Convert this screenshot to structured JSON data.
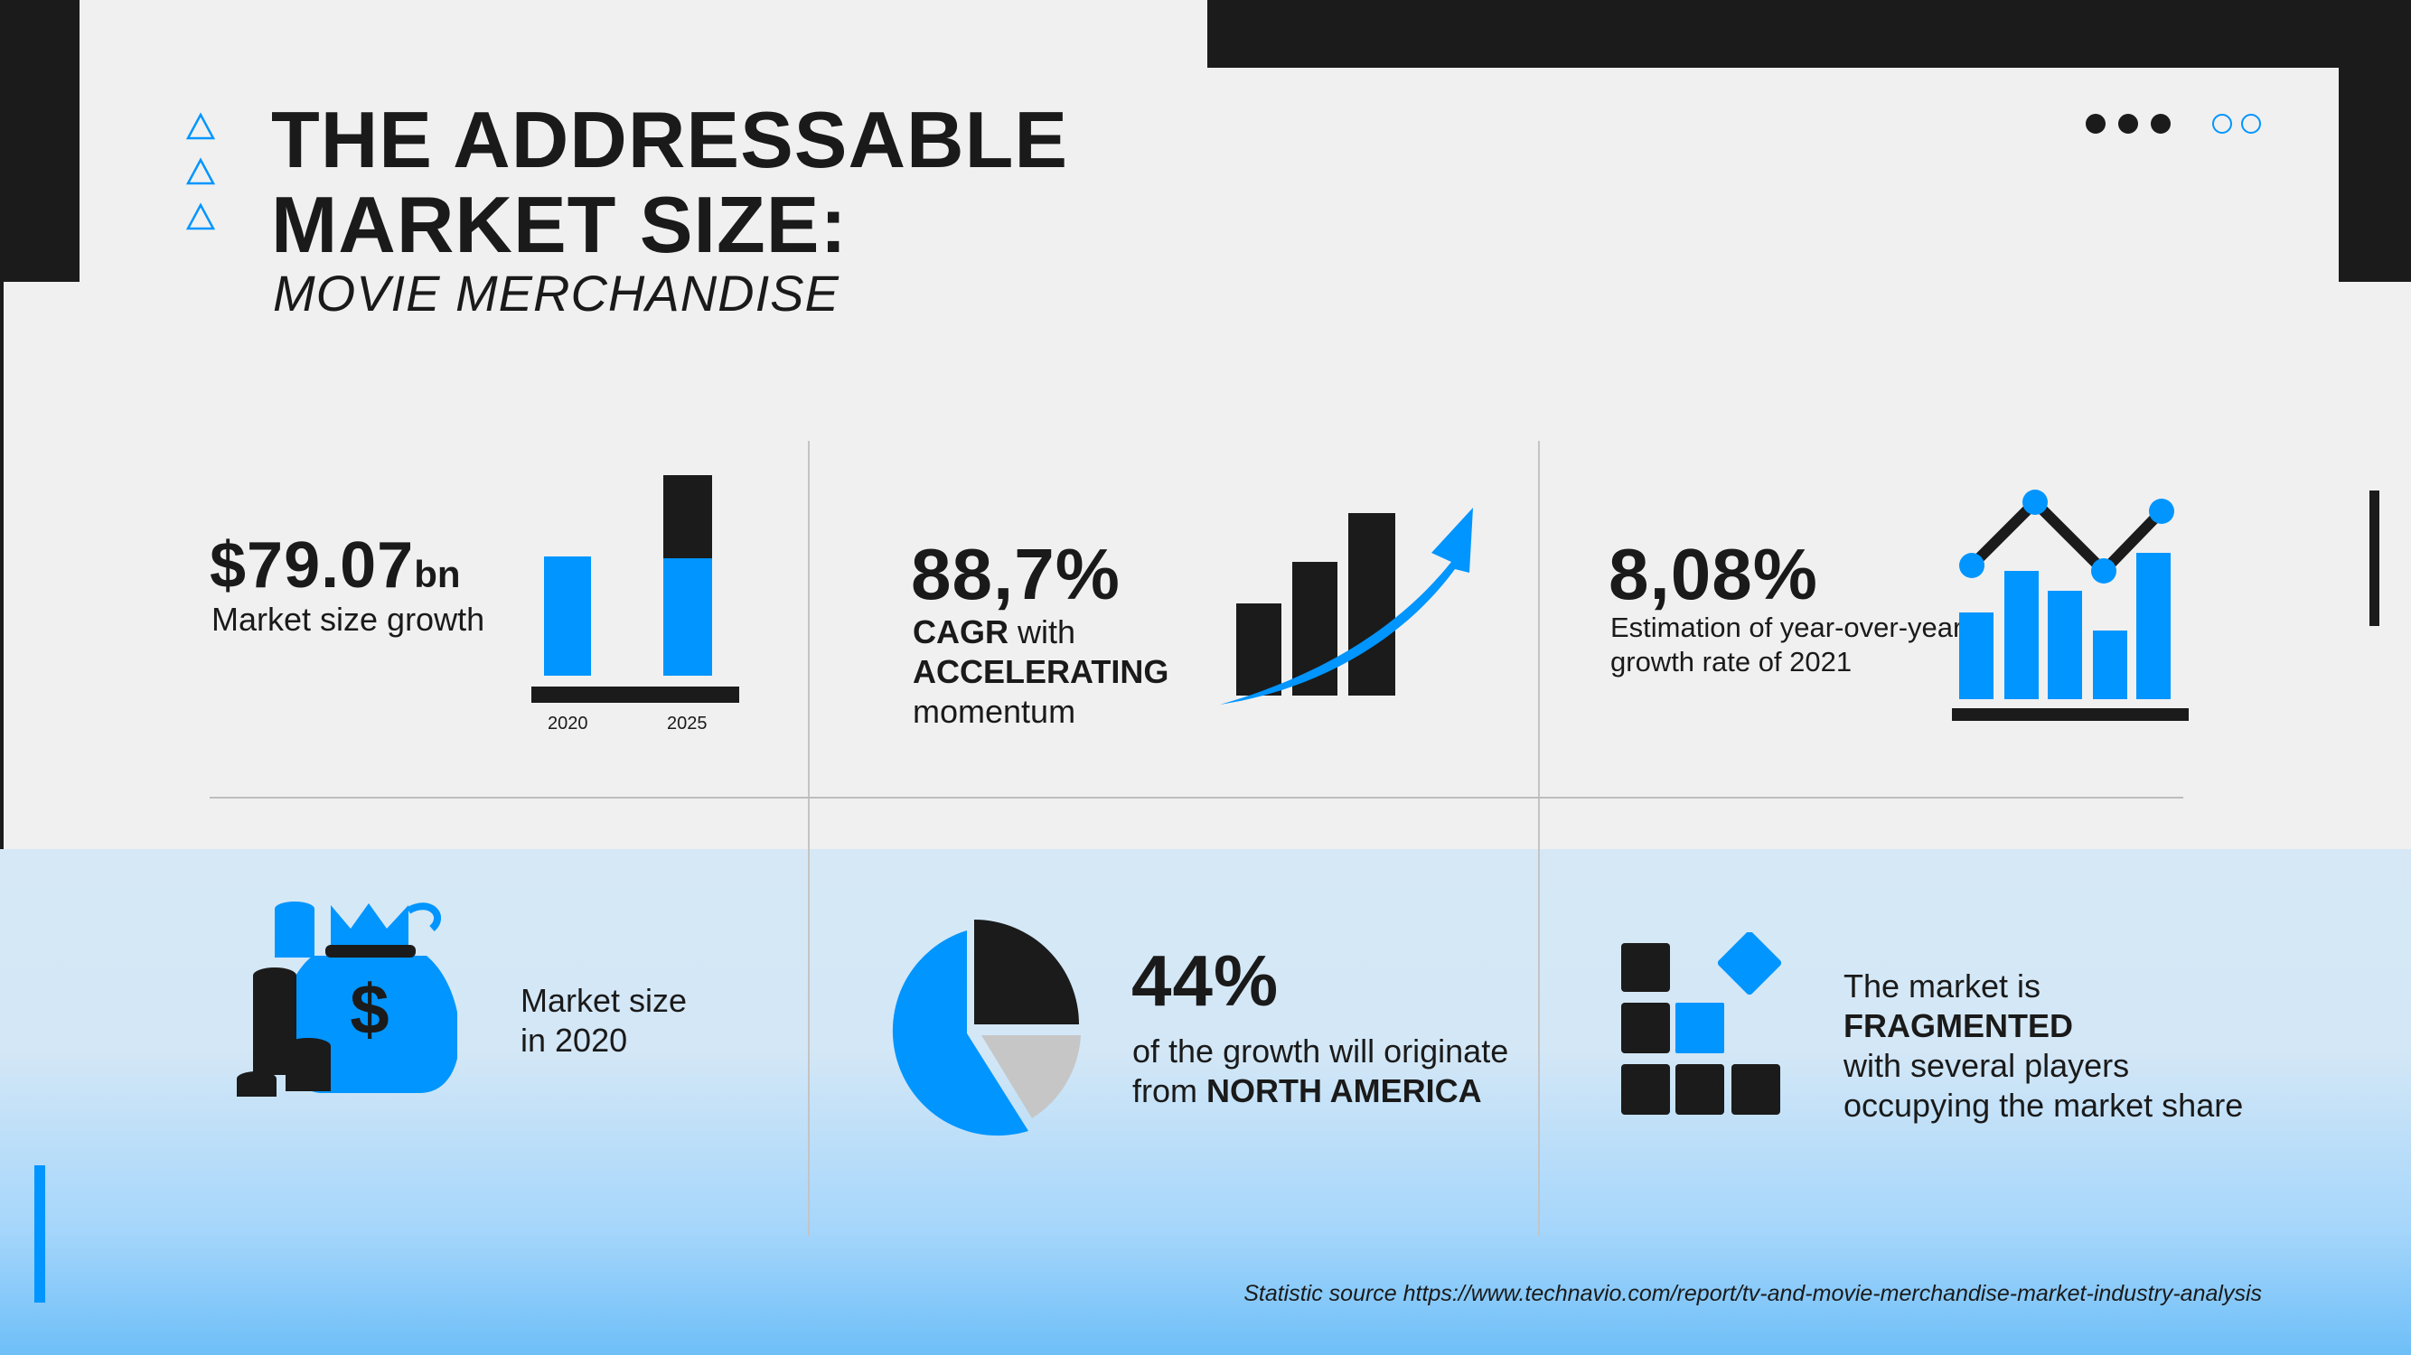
{
  "header": {
    "title_line1": "THE ADDRESSABLE",
    "title_line2": "MARKET SIZE:",
    "subtitle": "MOVIE MERCHANDISE"
  },
  "colors": {
    "accent": "#0095ff",
    "dark": "#1b1b1b",
    "light_bg": "#f0f0f0",
    "grey": "#c9c9c9"
  },
  "icons": [
    "triangle-outline-icon",
    "dots-icon",
    "money-bag-icon",
    "coin-stack-icon",
    "pie-chart-icon",
    "trend-arrow-icon",
    "line-bar-chart-icon",
    "blocks-icon"
  ],
  "stats": {
    "market_growth": {
      "value": "$79.07",
      "unit": "bn",
      "label": "Market size growth",
      "bar_years": [
        "2020",
        "2025"
      ]
    },
    "cagr": {
      "value": "88,7%",
      "line1_bold": "CAGR",
      "line1_rest": " with",
      "line2_bold": "ACCELERATING",
      "line3": "momentum"
    },
    "yoy": {
      "value": "8,08%",
      "line1": "Estimation of year-over-year",
      "line2": "growth rate of 2021"
    },
    "market_2020": {
      "line1": "Market size",
      "line2": "in 2020"
    },
    "north_america": {
      "value": "44%",
      "line1": "of the growth will originate",
      "line2_prefix": "from ",
      "line2_bold": "NORTH AMERICA"
    },
    "fragmented": {
      "line1": "The market is",
      "line2_bold": "FRAGMENTED",
      "line3": "with several players",
      "line4": "occupying the market share"
    }
  },
  "footer": {
    "source": "Statistic source https://www.technavio.com/report/tv-and-movie-merchandise-market-industry-analysis"
  }
}
